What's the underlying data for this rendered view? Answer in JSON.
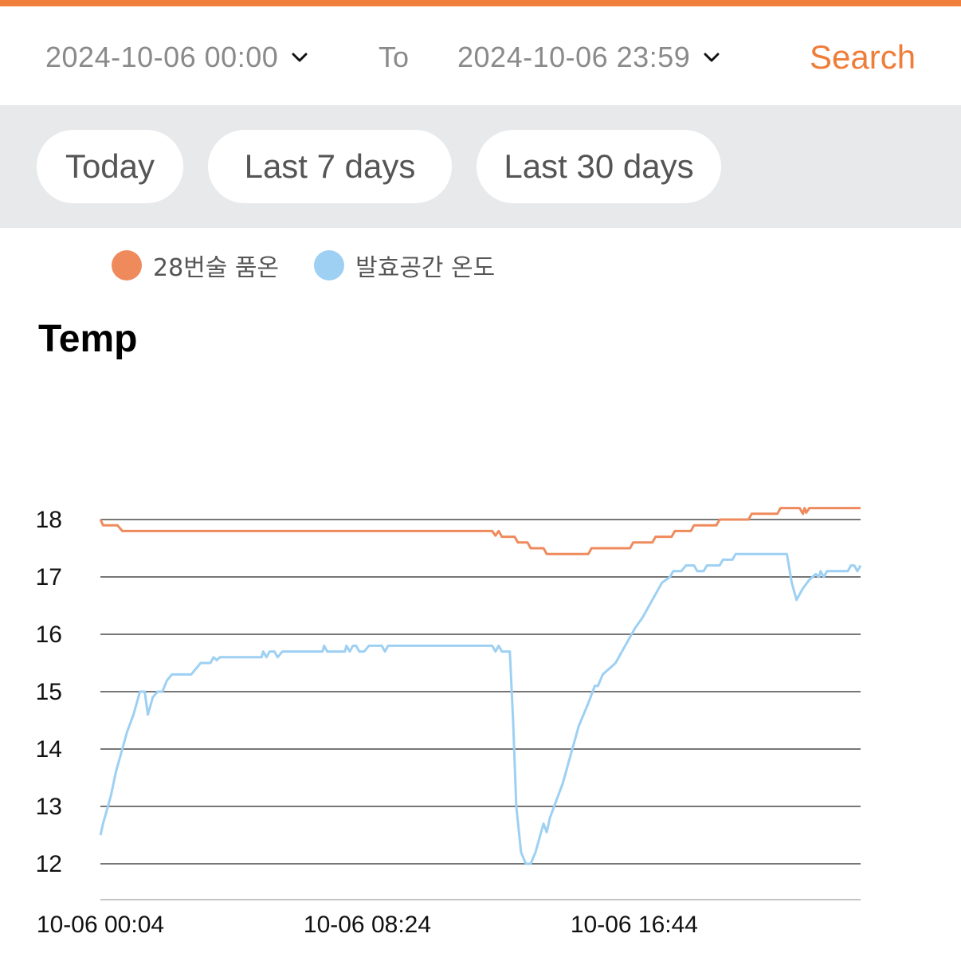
{
  "header": {
    "start_datetime": "2024-10-06 00:00",
    "to_label": "To",
    "end_datetime": "2024-10-06 23:59",
    "search_label": "Search"
  },
  "ranges": [
    {
      "label": "Today"
    },
    {
      "label": "Last 7 days"
    },
    {
      "label": "Last 30 days"
    }
  ],
  "colors": {
    "accent": "#f07f3c",
    "series_orange": "#ef8a5c",
    "series_blue": "#9dd0f3"
  },
  "chart_data": {
    "type": "line",
    "title": "Temp",
    "x_ticks": [
      "10-06 00:04",
      "10-06 08:24",
      "10-06 16:44"
    ],
    "y_ticks": [
      12,
      13,
      14,
      15,
      16,
      17,
      18
    ],
    "ylim": [
      11.4,
      18.4
    ],
    "xlim_hours": [
      0.0667,
      23.8
    ],
    "grid": true,
    "legend_position": "top-left",
    "series": [
      {
        "name": "28번술 품온",
        "color": "#ef8a5c",
        "points": [
          [
            0.07,
            18.0
          ],
          [
            0.15,
            17.9
          ],
          [
            0.6,
            17.9
          ],
          [
            0.75,
            17.8
          ],
          [
            11.0,
            17.8
          ],
          [
            12.3,
            17.8
          ],
          [
            12.4,
            17.72
          ],
          [
            12.5,
            17.8
          ],
          [
            12.6,
            17.7
          ],
          [
            13.0,
            17.7
          ],
          [
            13.1,
            17.6
          ],
          [
            13.4,
            17.6
          ],
          [
            13.5,
            17.5
          ],
          [
            13.9,
            17.5
          ],
          [
            14.0,
            17.4
          ],
          [
            15.3,
            17.4
          ],
          [
            15.4,
            17.5
          ],
          [
            16.6,
            17.5
          ],
          [
            16.7,
            17.6
          ],
          [
            17.3,
            17.6
          ],
          [
            17.4,
            17.7
          ],
          [
            17.9,
            17.7
          ],
          [
            18.0,
            17.8
          ],
          [
            18.5,
            17.8
          ],
          [
            18.6,
            17.9
          ],
          [
            19.3,
            17.9
          ],
          [
            19.4,
            18.0
          ],
          [
            20.3,
            18.0
          ],
          [
            20.4,
            18.1
          ],
          [
            21.2,
            18.1
          ],
          [
            21.3,
            18.2
          ],
          [
            21.9,
            18.2
          ],
          [
            22.0,
            18.1
          ],
          [
            22.05,
            18.2
          ],
          [
            22.1,
            18.12
          ],
          [
            22.2,
            18.2
          ],
          [
            23.8,
            18.2
          ]
        ]
      },
      {
        "name": "발효공간 온도",
        "color": "#9dd0f3",
        "points": [
          [
            0.07,
            12.5
          ],
          [
            0.15,
            12.7
          ],
          [
            0.25,
            12.9
          ],
          [
            0.4,
            13.2
          ],
          [
            0.55,
            13.6
          ],
          [
            0.7,
            13.9
          ],
          [
            0.9,
            14.3
          ],
          [
            1.1,
            14.6
          ],
          [
            1.3,
            15.0
          ],
          [
            1.45,
            15.0
          ],
          [
            1.55,
            14.6
          ],
          [
            1.7,
            14.9
          ],
          [
            1.85,
            15.0
          ],
          [
            2.0,
            15.0
          ],
          [
            2.15,
            15.2
          ],
          [
            2.3,
            15.3
          ],
          [
            2.9,
            15.3
          ],
          [
            3.2,
            15.5
          ],
          [
            3.5,
            15.5
          ],
          [
            3.6,
            15.6
          ],
          [
            3.7,
            15.55
          ],
          [
            3.8,
            15.6
          ],
          [
            5.1,
            15.6
          ],
          [
            5.15,
            15.7
          ],
          [
            5.25,
            15.6
          ],
          [
            5.35,
            15.7
          ],
          [
            5.5,
            15.7
          ],
          [
            5.6,
            15.6
          ],
          [
            5.75,
            15.7
          ],
          [
            7.0,
            15.7
          ],
          [
            7.05,
            15.8
          ],
          [
            7.15,
            15.7
          ],
          [
            7.7,
            15.7
          ],
          [
            7.75,
            15.8
          ],
          [
            7.85,
            15.7
          ],
          [
            7.95,
            15.8
          ],
          [
            8.05,
            15.8
          ],
          [
            8.15,
            15.7
          ],
          [
            8.3,
            15.7
          ],
          [
            8.45,
            15.8
          ],
          [
            8.85,
            15.8
          ],
          [
            8.95,
            15.7
          ],
          [
            9.05,
            15.8
          ],
          [
            12.3,
            15.8
          ],
          [
            12.4,
            15.7
          ],
          [
            12.5,
            15.8
          ],
          [
            12.6,
            15.7
          ],
          [
            12.85,
            15.7
          ],
          [
            12.95,
            14.5
          ],
          [
            13.05,
            13.0
          ],
          [
            13.2,
            12.2
          ],
          [
            13.35,
            12.0
          ],
          [
            13.5,
            12.0
          ],
          [
            13.65,
            12.2
          ],
          [
            13.8,
            12.5
          ],
          [
            13.9,
            12.7
          ],
          [
            14.0,
            12.55
          ],
          [
            14.1,
            12.8
          ],
          [
            14.3,
            13.1
          ],
          [
            14.5,
            13.4
          ],
          [
            14.75,
            13.9
          ],
          [
            15.0,
            14.4
          ],
          [
            15.3,
            14.8
          ],
          [
            15.5,
            15.1
          ],
          [
            15.6,
            15.1
          ],
          [
            15.75,
            15.3
          ],
          [
            15.95,
            15.4
          ],
          [
            16.15,
            15.5
          ],
          [
            16.35,
            15.7
          ],
          [
            16.55,
            15.9
          ],
          [
            16.75,
            16.1
          ],
          [
            17.0,
            16.3
          ],
          [
            17.3,
            16.6
          ],
          [
            17.6,
            16.9
          ],
          [
            17.85,
            17.0
          ],
          [
            17.95,
            17.1
          ],
          [
            18.2,
            17.1
          ],
          [
            18.35,
            17.2
          ],
          [
            18.6,
            17.2
          ],
          [
            18.7,
            17.1
          ],
          [
            18.9,
            17.1
          ],
          [
            19.0,
            17.2
          ],
          [
            19.4,
            17.2
          ],
          [
            19.5,
            17.3
          ],
          [
            19.8,
            17.3
          ],
          [
            19.9,
            17.4
          ],
          [
            21.5,
            17.4
          ],
          [
            21.65,
            16.9
          ],
          [
            21.8,
            16.6
          ],
          [
            22.0,
            16.8
          ],
          [
            22.2,
            16.95
          ],
          [
            22.4,
            17.05
          ],
          [
            22.5,
            17.0
          ],
          [
            22.55,
            17.1
          ],
          [
            22.65,
            17.0
          ],
          [
            22.75,
            17.1
          ],
          [
            23.4,
            17.1
          ],
          [
            23.5,
            17.2
          ],
          [
            23.6,
            17.2
          ],
          [
            23.7,
            17.1
          ],
          [
            23.8,
            17.2
          ]
        ]
      }
    ]
  }
}
